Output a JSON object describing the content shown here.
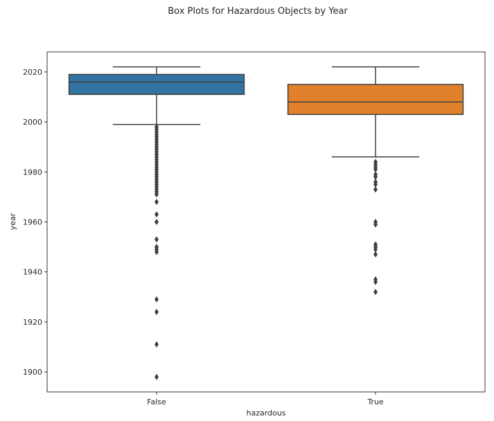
{
  "chart_data": {
    "type": "box",
    "title": "Box Plots for Hazardous Objects by Year",
    "xlabel": "hazardous",
    "ylabel": "year",
    "ylim": [
      1892,
      2028
    ],
    "yticks": [
      1900,
      1920,
      1940,
      1960,
      1980,
      2000,
      2020
    ],
    "grid": false,
    "categories": [
      "False",
      "True"
    ],
    "colors": [
      "#3274a1",
      "#e1812c"
    ],
    "boxes": [
      {
        "name": "False",
        "whisker_low": 1999,
        "q1": 2011,
        "median": 2016,
        "q3": 2019,
        "whisker_high": 2022,
        "outliers": [
          1898,
          1911,
          1924,
          1929,
          1948,
          1949,
          1950,
          1953,
          1960,
          1963,
          1968,
          1971,
          1972,
          1973,
          1974,
          1975,
          1976,
          1977,
          1978,
          1979,
          1980,
          1981,
          1982,
          1983,
          1984,
          1985,
          1986,
          1987,
          1988,
          1989,
          1990,
          1991,
          1992,
          1993,
          1994,
          1995,
          1996,
          1997,
          1998
        ]
      },
      {
        "name": "True",
        "whisker_low": 1986,
        "q1": 2003,
        "median": 2008,
        "q3": 2015,
        "whisker_high": 2022,
        "outliers": [
          1932,
          1936,
          1937,
          1947,
          1949,
          1950,
          1951,
          1959,
          1960,
          1973,
          1975,
          1976,
          1978,
          1979,
          1981,
          1982,
          1983,
          1984
        ]
      }
    ]
  }
}
